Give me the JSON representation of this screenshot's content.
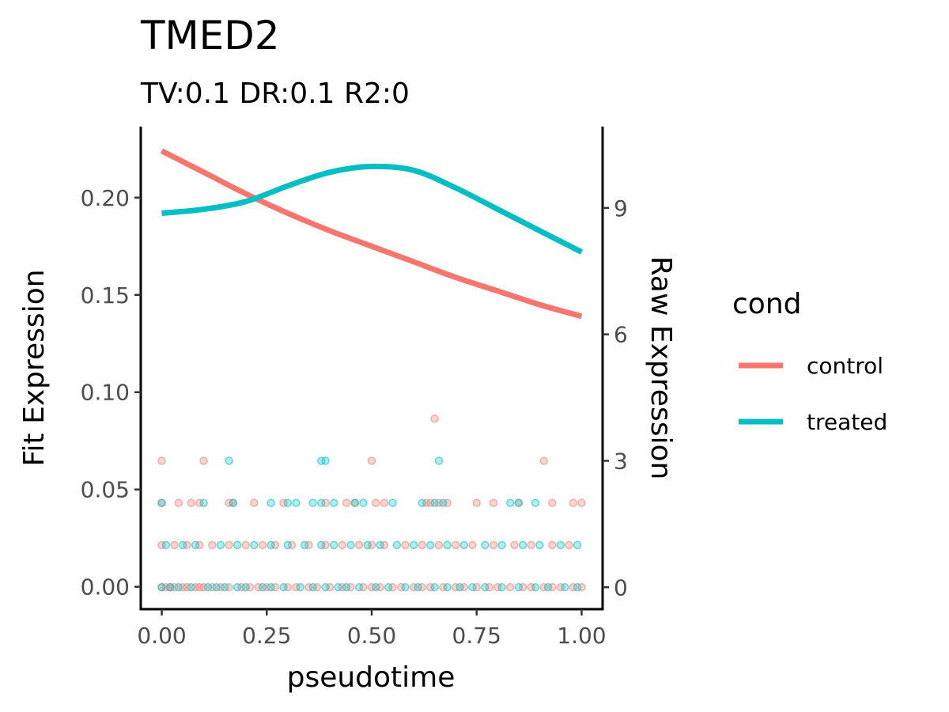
{
  "chart_data": {
    "type": "line",
    "title": "TMED2",
    "subtitle": "TV:0.1 DR:0.1 R2:0",
    "xlabel": "pseudotime",
    "ylabel": "Fit Expression",
    "y2label": "Raw Expression",
    "xlim": [
      -0.05,
      1.05
    ],
    "ylim": [
      -0.0115,
      0.2365
    ],
    "y2lim": [
      -0.52,
      10.93
    ],
    "x_ticks": [
      "0.00",
      "0.25",
      "0.50",
      "0.75",
      "1.00"
    ],
    "y_ticks": [
      "0.00",
      "0.05",
      "0.10",
      "0.15",
      "0.20"
    ],
    "y2_ticks": [
      "0",
      "3",
      "6",
      "9"
    ],
    "grid": false,
    "legend": {
      "title": "cond",
      "position": "right",
      "entries": [
        {
          "label": "control",
          "color": "#F8766D"
        },
        {
          "label": "treated",
          "color": "#00BFC4"
        }
      ]
    },
    "series": [
      {
        "name": "control",
        "color": "#F8766D",
        "x": [
          0,
          0.1,
          0.2,
          0.3,
          0.4,
          0.5,
          0.6,
          0.7,
          0.8,
          0.9,
          1.0
        ],
        "y": [
          0.224,
          0.213,
          0.202,
          0.192,
          0.183,
          0.175,
          0.167,
          0.159,
          0.152,
          0.145,
          0.139
        ]
      },
      {
        "name": "treated",
        "color": "#00BFC4",
        "x": [
          0,
          0.1,
          0.2,
          0.3,
          0.4,
          0.5,
          0.6,
          0.7,
          0.8,
          0.9,
          1.0
        ],
        "y": [
          0.192,
          0.194,
          0.198,
          0.206,
          0.213,
          0.216,
          0.214,
          0.205,
          0.194,
          0.183,
          0.172
        ]
      }
    ],
    "raw_points": [
      {
        "cond": "control",
        "levels": [
          {
            "raw": 0,
            "x": [
              0.0,
              0.01,
              0.02,
              0.03,
              0.05,
              0.06,
              0.08,
              0.09,
              0.1,
              0.12,
              0.14,
              0.16,
              0.19,
              0.21,
              0.23,
              0.25,
              0.27,
              0.3,
              0.32,
              0.35,
              0.37,
              0.4,
              0.43,
              0.45,
              0.48,
              0.5,
              0.52,
              0.55,
              0.57,
              0.6,
              0.62,
              0.64,
              0.67,
              0.7,
              0.72,
              0.75,
              0.78,
              0.8,
              0.83,
              0.86,
              0.88,
              0.91,
              0.93,
              0.95,
              0.98,
              1.0
            ]
          },
          {
            "raw": 1,
            "x": [
              0.0,
              0.03,
              0.06,
              0.09,
              0.12,
              0.16,
              0.2,
              0.24,
              0.27,
              0.31,
              0.35,
              0.39,
              0.43,
              0.47,
              0.5,
              0.53,
              0.58,
              0.62,
              0.66,
              0.7,
              0.74,
              0.79,
              0.84,
              0.88,
              0.93,
              0.97
            ]
          },
          {
            "raw": 2,
            "x": [
              0.0,
              0.04,
              0.07,
              0.09,
              0.16,
              0.17,
              0.22,
              0.29,
              0.39,
              0.44,
              0.46,
              0.51,
              0.53,
              0.63,
              0.64,
              0.66,
              0.68,
              0.75,
              0.79,
              0.85,
              0.93,
              0.98,
              1.0
            ]
          },
          {
            "raw": 3,
            "x": [
              0.0,
              0.1,
              0.5,
              0.91
            ]
          },
          {
            "raw": 4,
            "x": [
              0.65
            ]
          }
        ]
      },
      {
        "cond": "treated",
        "levels": [
          {
            "raw": 0,
            "x": [
              0.0,
              0.02,
              0.04,
              0.07,
              0.11,
              0.13,
              0.15,
              0.18,
              0.2,
              0.24,
              0.26,
              0.29,
              0.33,
              0.36,
              0.39,
              0.42,
              0.44,
              0.47,
              0.51,
              0.54,
              0.58,
              0.61,
              0.65,
              0.68,
              0.71,
              0.74,
              0.77,
              0.81,
              0.85,
              0.89,
              0.92,
              0.96,
              0.99
            ]
          },
          {
            "raw": 1,
            "x": [
              0.01,
              0.05,
              0.08,
              0.14,
              0.18,
              0.22,
              0.26,
              0.3,
              0.34,
              0.38,
              0.41,
              0.45,
              0.49,
              0.52,
              0.56,
              0.6,
              0.64,
              0.68,
              0.72,
              0.77,
              0.81,
              0.86,
              0.9,
              0.95,
              0.99
            ]
          },
          {
            "raw": 2,
            "x": [
              0.0,
              0.1,
              0.17,
              0.26,
              0.3,
              0.32,
              0.36,
              0.38,
              0.41,
              0.46,
              0.48,
              0.55,
              0.62,
              0.65,
              0.67,
              0.83,
              0.85,
              0.89
            ]
          },
          {
            "raw": 3,
            "x": [
              0.16,
              0.38,
              0.39,
              0.66
            ]
          }
        ]
      }
    ]
  }
}
